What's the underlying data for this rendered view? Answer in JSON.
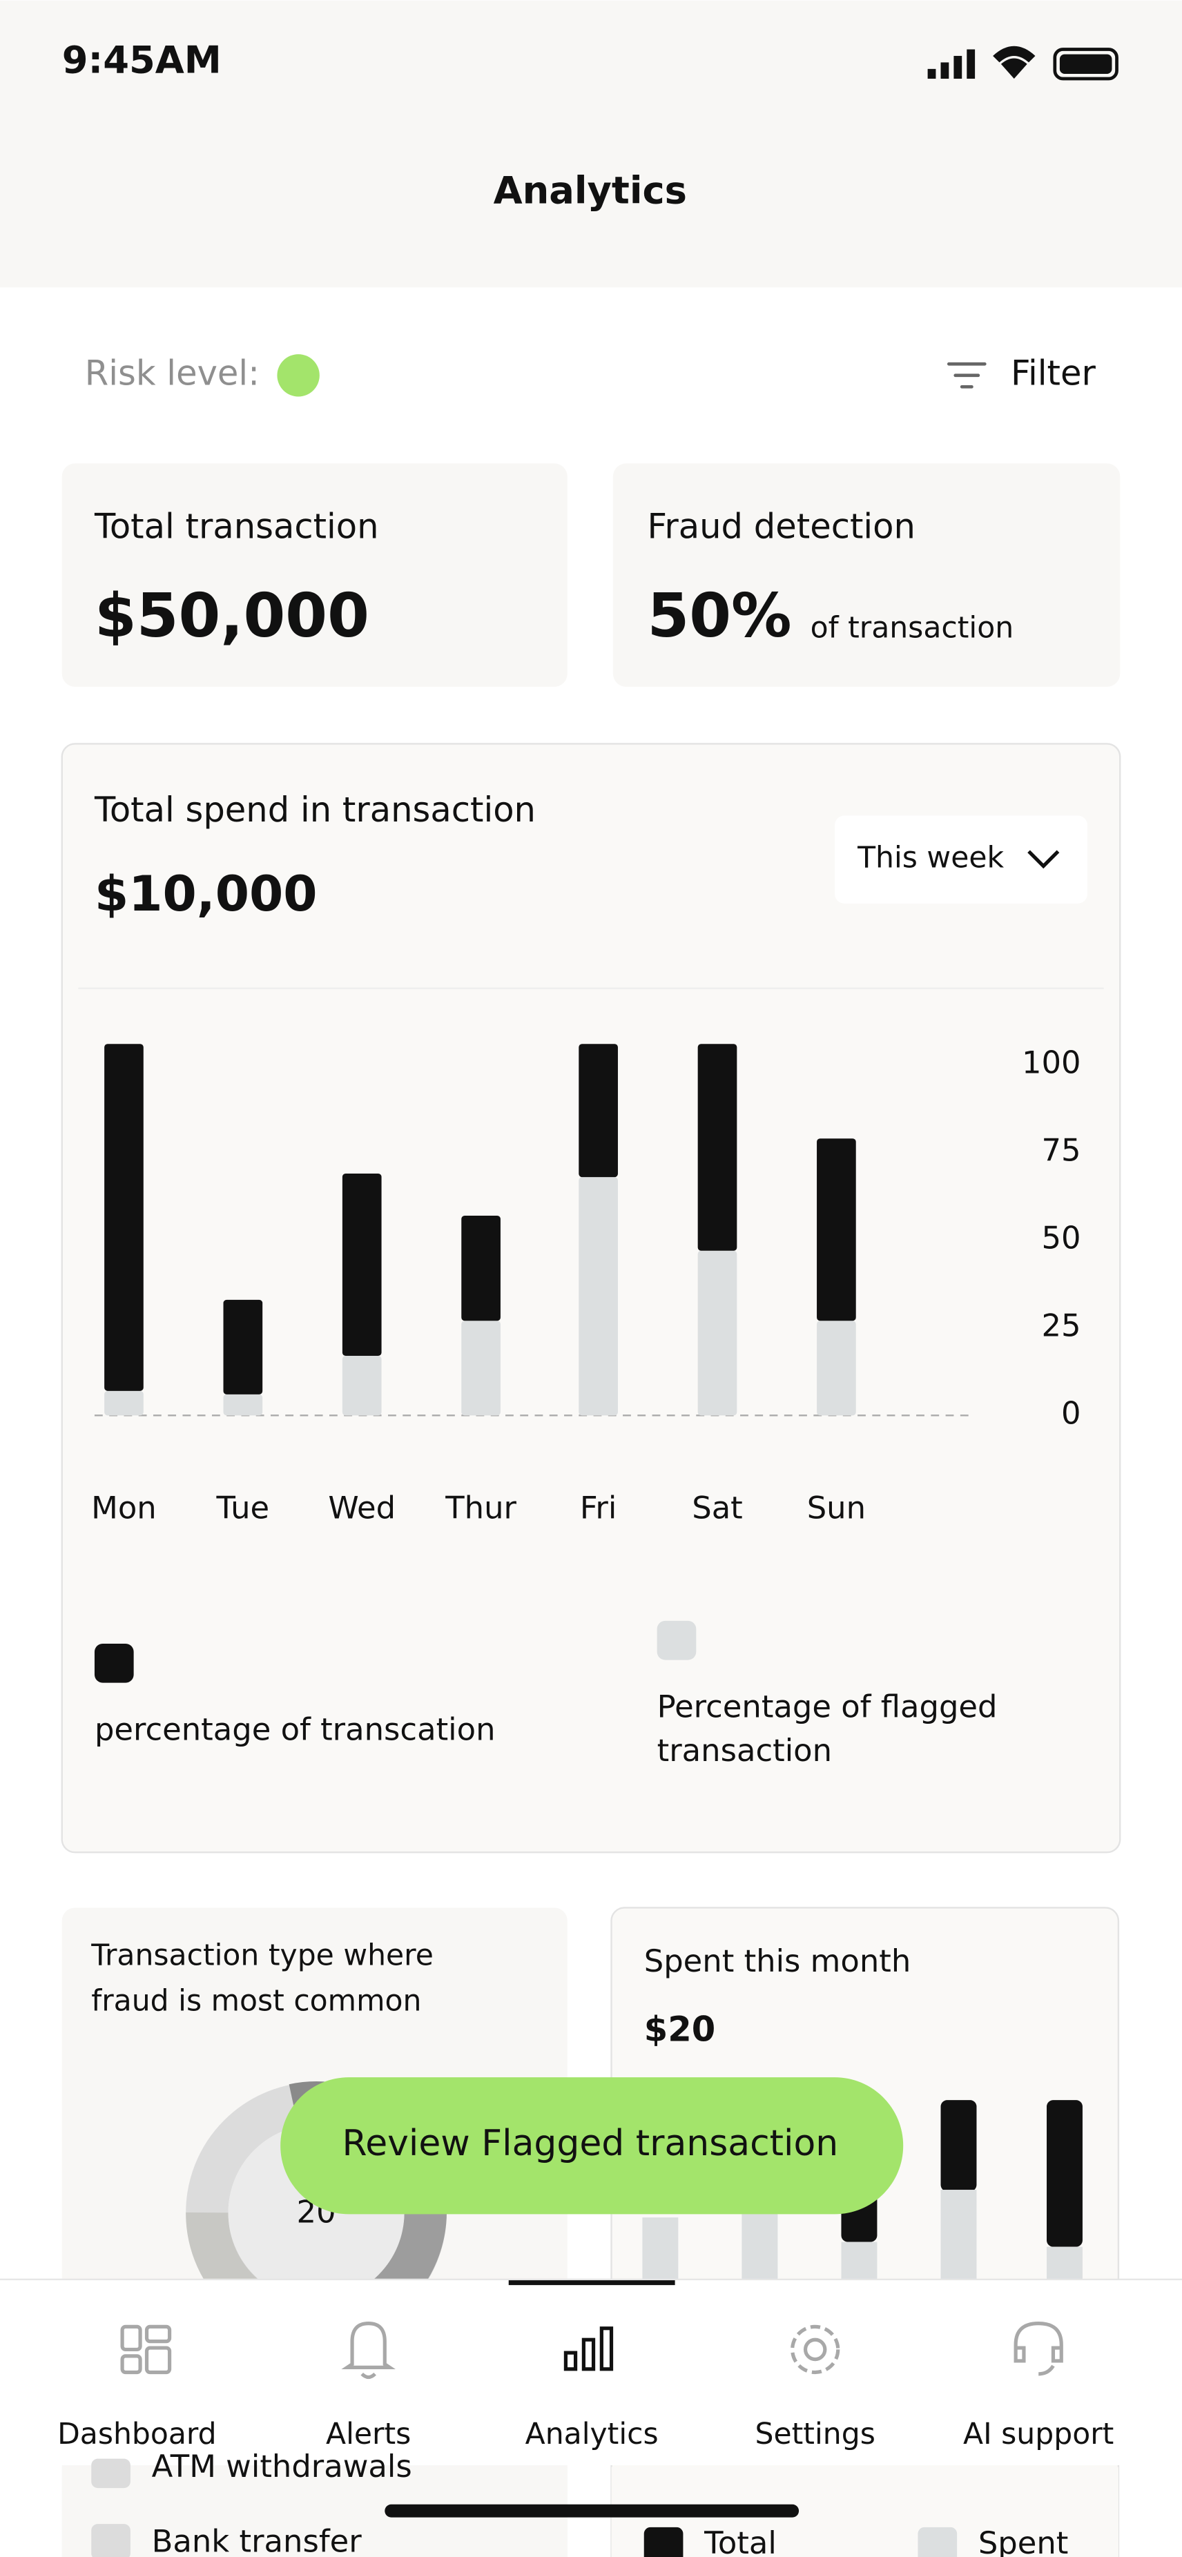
{
  "status_bar": {
    "time": "9:45AM"
  },
  "header": {
    "title": "Analytics"
  },
  "risk": {
    "label": "Risk level:"
  },
  "filter": {
    "label": "Filter"
  },
  "summary": [
    {
      "title": "Total transaction",
      "value": "$50,000"
    },
    {
      "title": "Fraud detection",
      "value": "50%",
      "suffix": "of transaction"
    }
  ],
  "spend_card": {
    "value": "$10,000",
    "period": "This week"
  },
  "chart_data": {
    "type": "stacked_bar",
    "title": "Total spend in transaction",
    "categories": [
      "Mon",
      "Tue",
      "Wed",
      "Thur",
      "Fri",
      "Sat",
      "Sun"
    ],
    "series": [
      {
        "name": "Percentage of flagged transaction",
        "color": "#dcdfe0",
        "values": [
          7,
          6,
          17,
          27,
          68,
          47,
          27
        ]
      },
      {
        "name": "percentage of transcation",
        "color": "#111111",
        "values": [
          99,
          27,
          52,
          30,
          38,
          59,
          52
        ]
      }
    ],
    "ylim": [
      0,
      100
    ],
    "yticks": [
      0,
      25,
      50,
      75,
      100
    ],
    "zero_line": true
  },
  "fraud_types": {
    "title": "Transaction type where fraud is most common",
    "center_label": "20",
    "items": [
      "ATM withdrawals",
      "Bank transfer"
    ]
  },
  "monthly": {
    "title": "Spent this month",
    "value": "$20",
    "legend": [
      "Total",
      "Spent"
    ]
  },
  "button": {
    "label": "Review Flagged transaction"
  },
  "nav": [
    "Dashboard",
    "Alerts",
    "Analytics",
    "Settings",
    "AI support"
  ]
}
